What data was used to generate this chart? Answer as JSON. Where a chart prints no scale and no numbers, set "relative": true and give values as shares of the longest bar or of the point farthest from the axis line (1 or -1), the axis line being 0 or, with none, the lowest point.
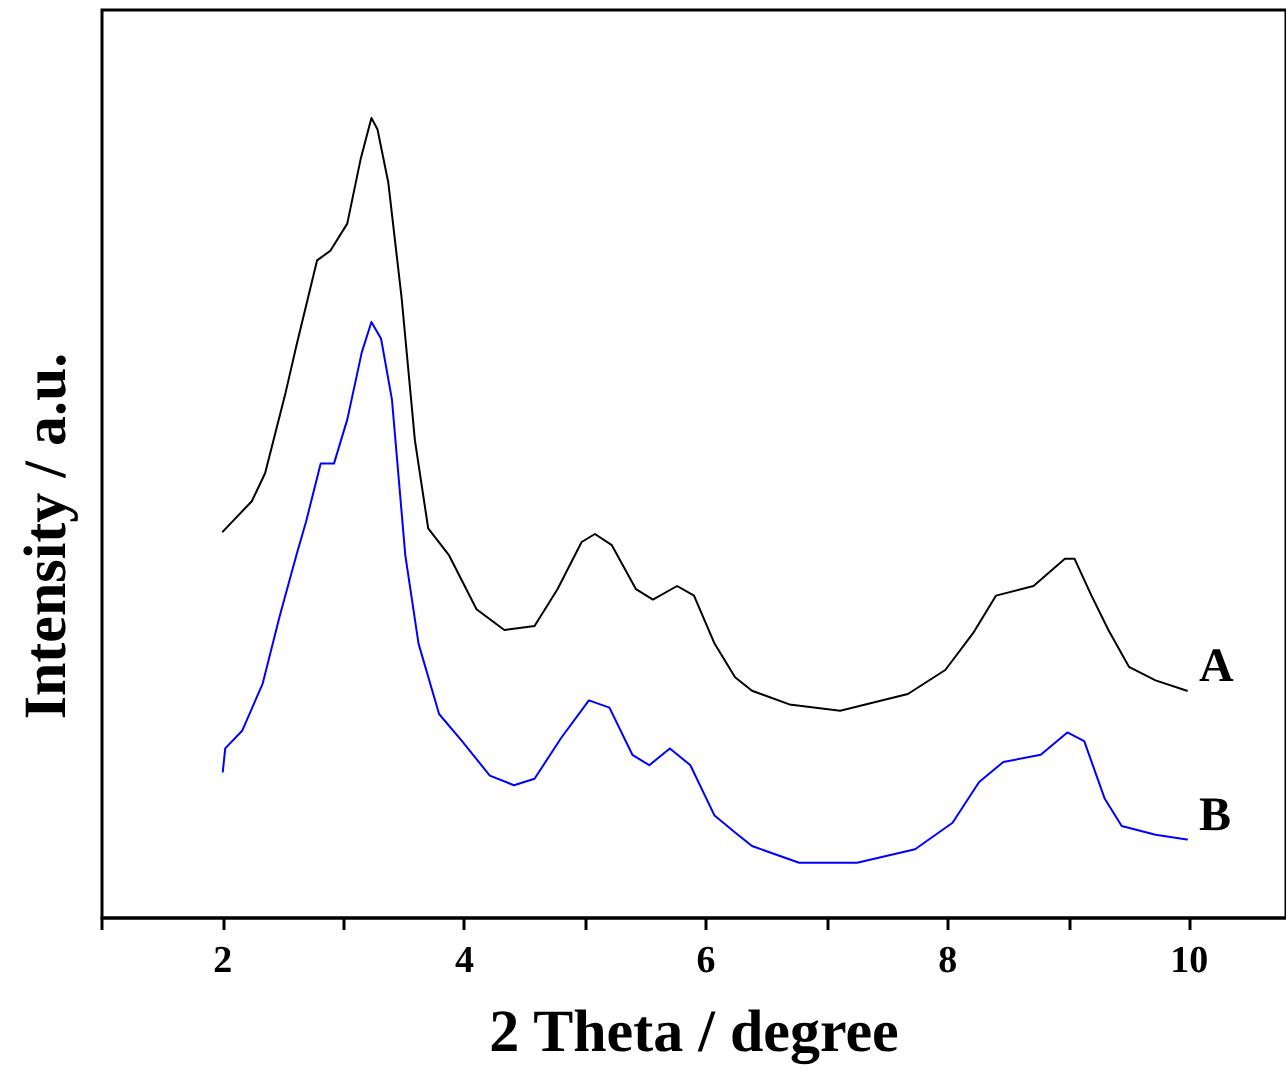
{
  "chart_data": {
    "type": "line",
    "xlabel": "2 Theta / degree",
    "ylabel": "Intensity / a.u.",
    "relative": true,
    "tick_labels": "x",
    "grid": false,
    "legend": false,
    "marker": "none",
    "line_style": "solid",
    "xlim": [
      1,
      10.8
    ],
    "xticks": [
      {
        "value": 1,
        "label": null
      },
      2,
      {
        "value": 3,
        "label": null
      },
      4,
      {
        "value": 5,
        "label": null
      },
      6,
      {
        "value": 7,
        "label": null
      },
      8,
      {
        "value": 9,
        "label": null
      },
      10
    ],
    "series": [
      {
        "name": "A",
        "color": "#000000",
        "x": [
          2.0,
          2.24,
          2.35,
          2.52,
          2.61,
          2.78,
          2.89,
          3.03,
          3.14,
          3.23,
          3.28,
          3.37,
          3.48,
          3.59,
          3.7,
          3.87,
          4.1,
          4.33,
          4.58,
          4.77,
          4.97,
          5.08,
          5.22,
          5.42,
          5.56,
          5.76,
          5.9,
          6.07,
          6.24,
          6.38,
          6.69,
          7.11,
          7.67,
          7.98,
          8.21,
          8.4,
          8.71,
          8.97,
          9.05,
          9.19,
          9.33,
          9.5,
          9.72,
          9.98
        ],
        "values": [
          0.483,
          0.521,
          0.556,
          0.657,
          0.716,
          0.822,
          0.834,
          0.868,
          0.948,
          1,
          0.986,
          0.919,
          0.775,
          0.597,
          0.487,
          0.454,
          0.386,
          0.36,
          0.365,
          0.411,
          0.47,
          0.48,
          0.466,
          0.411,
          0.398,
          0.415,
          0.403,
          0.343,
          0.301,
          0.284,
          0.267,
          0.259,
          0.28,
          0.31,
          0.356,
          0.403,
          0.415,
          0.449,
          0.449,
          0.403,
          0.36,
          0.314,
          0.297,
          0.284
        ]
      },
      {
        "name": "B",
        "color": "#0000ff",
        "x": [
          2.0,
          2.02,
          2.16,
          2.33,
          2.47,
          2.61,
          2.69,
          2.81,
          2.92,
          3.03,
          3.15,
          3.23,
          3.31,
          3.4,
          3.51,
          3.62,
          3.79,
          3.98,
          4.21,
          4.41,
          4.58,
          4.8,
          5.03,
          5.2,
          5.39,
          5.53,
          5.7,
          5.87,
          6.07,
          6.24,
          6.38,
          6.77,
          7.25,
          7.73,
          8.04,
          8.26,
          8.46,
          8.77,
          8.99,
          9.13,
          9.3,
          9.44,
          9.72,
          9.98
        ],
        "values": [
          0.183,
          0.212,
          0.234,
          0.293,
          0.377,
          0.454,
          0.496,
          0.568,
          0.568,
          0.623,
          0.707,
          0.745,
          0.724,
          0.648,
          0.454,
          0.343,
          0.255,
          0.221,
          0.178,
          0.166,
          0.174,
          0.225,
          0.272,
          0.263,
          0.204,
          0.191,
          0.212,
          0.191,
          0.128,
          0.107,
          0.09,
          0.069,
          0.069,
          0.086,
          0.119,
          0.17,
          0.195,
          0.204,
          0.232,
          0.221,
          0.149,
          0.115,
          0.104,
          0.098
        ]
      }
    ]
  }
}
